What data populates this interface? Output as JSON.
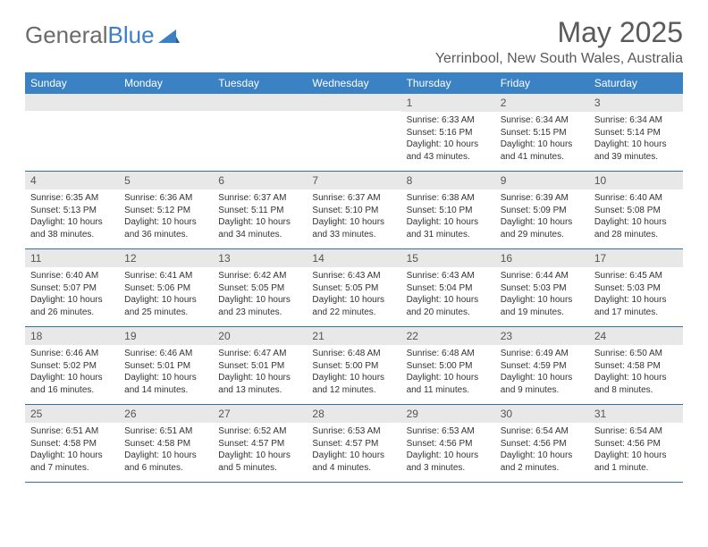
{
  "brand": {
    "part1": "General",
    "part2": "Blue"
  },
  "title": "May 2025",
  "location": "Yerrinbool, New South Wales, Australia",
  "colors": {
    "header_bg": "#3b82c4",
    "header_text": "#ffffff",
    "daynum_bg": "#e8e8e8",
    "week_border": "#3b6ea0",
    "brand_grey": "#6b6b6b",
    "brand_blue": "#3b7fc4",
    "text": "#333333"
  },
  "daysOfWeek": [
    "Sunday",
    "Monday",
    "Tuesday",
    "Wednesday",
    "Thursday",
    "Friday",
    "Saturday"
  ],
  "weeks": [
    [
      {
        "n": "",
        "sr": "",
        "ss": "",
        "dl": ""
      },
      {
        "n": "",
        "sr": "",
        "ss": "",
        "dl": ""
      },
      {
        "n": "",
        "sr": "",
        "ss": "",
        "dl": ""
      },
      {
        "n": "",
        "sr": "",
        "ss": "",
        "dl": ""
      },
      {
        "n": "1",
        "sr": "Sunrise: 6:33 AM",
        "ss": "Sunset: 5:16 PM",
        "dl": "Daylight: 10 hours and 43 minutes."
      },
      {
        "n": "2",
        "sr": "Sunrise: 6:34 AM",
        "ss": "Sunset: 5:15 PM",
        "dl": "Daylight: 10 hours and 41 minutes."
      },
      {
        "n": "3",
        "sr": "Sunrise: 6:34 AM",
        "ss": "Sunset: 5:14 PM",
        "dl": "Daylight: 10 hours and 39 minutes."
      }
    ],
    [
      {
        "n": "4",
        "sr": "Sunrise: 6:35 AM",
        "ss": "Sunset: 5:13 PM",
        "dl": "Daylight: 10 hours and 38 minutes."
      },
      {
        "n": "5",
        "sr": "Sunrise: 6:36 AM",
        "ss": "Sunset: 5:12 PM",
        "dl": "Daylight: 10 hours and 36 minutes."
      },
      {
        "n": "6",
        "sr": "Sunrise: 6:37 AM",
        "ss": "Sunset: 5:11 PM",
        "dl": "Daylight: 10 hours and 34 minutes."
      },
      {
        "n": "7",
        "sr": "Sunrise: 6:37 AM",
        "ss": "Sunset: 5:10 PM",
        "dl": "Daylight: 10 hours and 33 minutes."
      },
      {
        "n": "8",
        "sr": "Sunrise: 6:38 AM",
        "ss": "Sunset: 5:10 PM",
        "dl": "Daylight: 10 hours and 31 minutes."
      },
      {
        "n": "9",
        "sr": "Sunrise: 6:39 AM",
        "ss": "Sunset: 5:09 PM",
        "dl": "Daylight: 10 hours and 29 minutes."
      },
      {
        "n": "10",
        "sr": "Sunrise: 6:40 AM",
        "ss": "Sunset: 5:08 PM",
        "dl": "Daylight: 10 hours and 28 minutes."
      }
    ],
    [
      {
        "n": "11",
        "sr": "Sunrise: 6:40 AM",
        "ss": "Sunset: 5:07 PM",
        "dl": "Daylight: 10 hours and 26 minutes."
      },
      {
        "n": "12",
        "sr": "Sunrise: 6:41 AM",
        "ss": "Sunset: 5:06 PM",
        "dl": "Daylight: 10 hours and 25 minutes."
      },
      {
        "n": "13",
        "sr": "Sunrise: 6:42 AM",
        "ss": "Sunset: 5:05 PM",
        "dl": "Daylight: 10 hours and 23 minutes."
      },
      {
        "n": "14",
        "sr": "Sunrise: 6:43 AM",
        "ss": "Sunset: 5:05 PM",
        "dl": "Daylight: 10 hours and 22 minutes."
      },
      {
        "n": "15",
        "sr": "Sunrise: 6:43 AM",
        "ss": "Sunset: 5:04 PM",
        "dl": "Daylight: 10 hours and 20 minutes."
      },
      {
        "n": "16",
        "sr": "Sunrise: 6:44 AM",
        "ss": "Sunset: 5:03 PM",
        "dl": "Daylight: 10 hours and 19 minutes."
      },
      {
        "n": "17",
        "sr": "Sunrise: 6:45 AM",
        "ss": "Sunset: 5:03 PM",
        "dl": "Daylight: 10 hours and 17 minutes."
      }
    ],
    [
      {
        "n": "18",
        "sr": "Sunrise: 6:46 AM",
        "ss": "Sunset: 5:02 PM",
        "dl": "Daylight: 10 hours and 16 minutes."
      },
      {
        "n": "19",
        "sr": "Sunrise: 6:46 AM",
        "ss": "Sunset: 5:01 PM",
        "dl": "Daylight: 10 hours and 14 minutes."
      },
      {
        "n": "20",
        "sr": "Sunrise: 6:47 AM",
        "ss": "Sunset: 5:01 PM",
        "dl": "Daylight: 10 hours and 13 minutes."
      },
      {
        "n": "21",
        "sr": "Sunrise: 6:48 AM",
        "ss": "Sunset: 5:00 PM",
        "dl": "Daylight: 10 hours and 12 minutes."
      },
      {
        "n": "22",
        "sr": "Sunrise: 6:48 AM",
        "ss": "Sunset: 5:00 PM",
        "dl": "Daylight: 10 hours and 11 minutes."
      },
      {
        "n": "23",
        "sr": "Sunrise: 6:49 AM",
        "ss": "Sunset: 4:59 PM",
        "dl": "Daylight: 10 hours and 9 minutes."
      },
      {
        "n": "24",
        "sr": "Sunrise: 6:50 AM",
        "ss": "Sunset: 4:58 PM",
        "dl": "Daylight: 10 hours and 8 minutes."
      }
    ],
    [
      {
        "n": "25",
        "sr": "Sunrise: 6:51 AM",
        "ss": "Sunset: 4:58 PM",
        "dl": "Daylight: 10 hours and 7 minutes."
      },
      {
        "n": "26",
        "sr": "Sunrise: 6:51 AM",
        "ss": "Sunset: 4:58 PM",
        "dl": "Daylight: 10 hours and 6 minutes."
      },
      {
        "n": "27",
        "sr": "Sunrise: 6:52 AM",
        "ss": "Sunset: 4:57 PM",
        "dl": "Daylight: 10 hours and 5 minutes."
      },
      {
        "n": "28",
        "sr": "Sunrise: 6:53 AM",
        "ss": "Sunset: 4:57 PM",
        "dl": "Daylight: 10 hours and 4 minutes."
      },
      {
        "n": "29",
        "sr": "Sunrise: 6:53 AM",
        "ss": "Sunset: 4:56 PM",
        "dl": "Daylight: 10 hours and 3 minutes."
      },
      {
        "n": "30",
        "sr": "Sunrise: 6:54 AM",
        "ss": "Sunset: 4:56 PM",
        "dl": "Daylight: 10 hours and 2 minutes."
      },
      {
        "n": "31",
        "sr": "Sunrise: 6:54 AM",
        "ss": "Sunset: 4:56 PM",
        "dl": "Daylight: 10 hours and 1 minute."
      }
    ]
  ]
}
